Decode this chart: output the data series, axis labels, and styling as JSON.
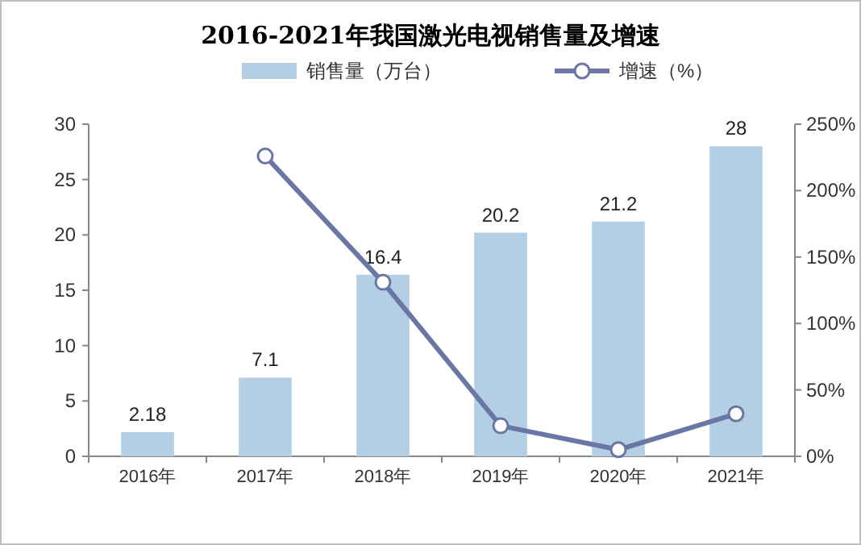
{
  "chart_data": {
    "type": "bar",
    "title": "2016-2021年我国激光电视销售量及增速",
    "categories": [
      "2016年",
      "2017年",
      "2018年",
      "2019年",
      "2020年",
      "2021年"
    ],
    "series": [
      {
        "name": "销售量（万台）",
        "color": "#b4cfe3",
        "values": [
          2.18,
          7.1,
          16.4,
          20.2,
          21.2,
          28
        ],
        "value_labels": [
          "2.18",
          "7.1",
          "16.4",
          "20.2",
          "21.2",
          "28"
        ]
      },
      {
        "name": "增速（%）",
        "type": "line",
        "axis": "y2",
        "color": "#6a76a4",
        "marker": "circle",
        "values": [
          null,
          226,
          131,
          23,
          5,
          32
        ]
      }
    ],
    "ylim": [
      0,
      30
    ],
    "yticks": [
      0,
      5,
      10,
      15,
      20,
      25,
      30
    ],
    "y2lim": [
      0,
      250
    ],
    "y2ticks": [
      {
        "value": 0,
        "label": "0%"
      },
      {
        "value": 50,
        "label": "50%"
      },
      {
        "value": 100,
        "label": "100%"
      },
      {
        "value": 150,
        "label": "150%"
      },
      {
        "value": 200,
        "label": "200%"
      },
      {
        "value": 250,
        "label": "250%"
      }
    ],
    "legend": "top",
    "grid": false
  }
}
